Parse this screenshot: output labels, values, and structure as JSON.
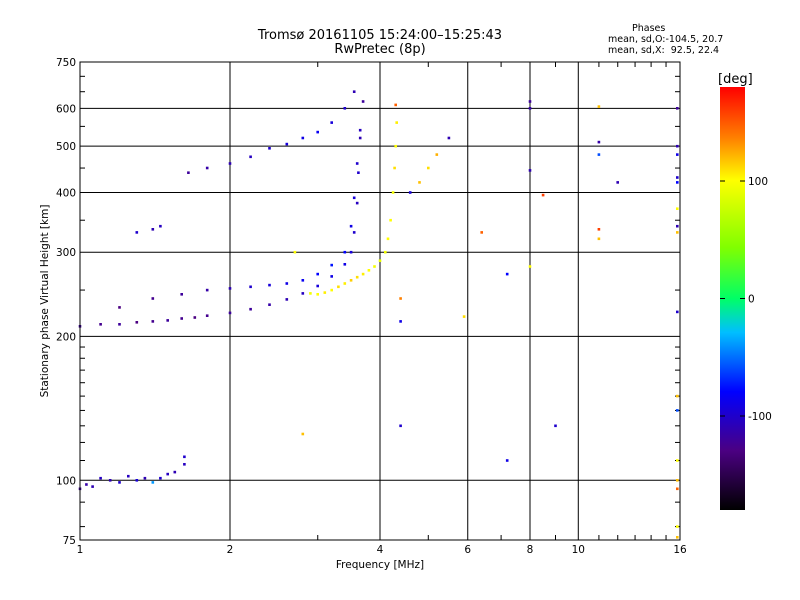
{
  "header": {
    "title": "Tromsø 20161105 15:24:00–15:25:43",
    "subtitle": "RwPretec (8p)"
  },
  "stats": {
    "heading": "Phases",
    "line_o": "mean, sd,O:-104.5, 20.7",
    "line_x": "mean, sd,X:  92.5, 22.4"
  },
  "chart_data": {
    "type": "scatter",
    "xlabel": "Frequency [MHz]",
    "ylabel": "Stationary phase Virtual Height [km]",
    "x_scale": "log",
    "y_scale": "log",
    "xlim": [
      1,
      16
    ],
    "ylim": [
      75,
      750
    ],
    "x_ticks": [
      1,
      2,
      4,
      6,
      8,
      10,
      16
    ],
    "y_ticks": [
      75,
      100,
      200,
      300,
      400,
      500,
      600,
      750
    ],
    "grid": true,
    "colorbar": {
      "label": "[deg]",
      "range": [
        -180,
        180
      ],
      "ticks": [
        -100,
        0,
        100
      ]
    },
    "series": [
      {
        "group": "E",
        "points": [
          [
            1.0,
            96,
            -120
          ],
          [
            1.03,
            98,
            -115
          ],
          [
            1.06,
            97,
            -110
          ],
          [
            1.1,
            101,
            -105
          ],
          [
            1.15,
            100,
            -110
          ],
          [
            1.2,
            99,
            -100
          ],
          [
            1.25,
            102,
            -105
          ],
          [
            1.3,
            100,
            -95
          ],
          [
            1.35,
            101,
            -110
          ],
          [
            1.4,
            99,
            -40
          ],
          [
            1.45,
            101,
            -100
          ],
          [
            1.5,
            103,
            -105
          ],
          [
            1.55,
            104,
            -110
          ],
          [
            1.62,
            108,
            -105
          ],
          [
            1.62,
            112,
            -100
          ]
        ]
      },
      {
        "group": "O-low",
        "points": [
          [
            1.0,
            210,
            -120
          ],
          [
            1.1,
            212,
            -125
          ],
          [
            1.2,
            212,
            -120
          ],
          [
            1.3,
            214,
            -130
          ],
          [
            1.4,
            215,
            -125
          ],
          [
            1.5,
            216,
            -120
          ],
          [
            1.6,
            218,
            -125
          ],
          [
            1.7,
            219,
            -130
          ],
          [
            1.8,
            221,
            -125
          ],
          [
            2.0,
            224,
            -120
          ],
          [
            2.2,
            228,
            -120
          ],
          [
            2.4,
            233,
            -115
          ],
          [
            2.6,
            239,
            -110
          ],
          [
            2.8,
            246,
            -105
          ],
          [
            3.0,
            255,
            -95
          ],
          [
            3.2,
            267,
            -90
          ],
          [
            3.4,
            283,
            -90
          ],
          [
            3.5,
            300,
            -95
          ],
          [
            3.55,
            330,
            -100
          ],
          [
            3.6,
            380,
            -105
          ],
          [
            3.62,
            440,
            -100
          ],
          [
            3.65,
            520,
            -110
          ],
          [
            3.7,
            620,
            -120
          ]
        ]
      },
      {
        "group": "O-high",
        "points": [
          [
            1.2,
            230,
            -130
          ],
          [
            1.4,
            240,
            -125
          ],
          [
            1.6,
            245,
            -120
          ],
          [
            1.8,
            250,
            -115
          ],
          [
            2.0,
            252,
            -110
          ],
          [
            2.2,
            254,
            -100
          ],
          [
            2.4,
            256,
            -95
          ],
          [
            2.6,
            258,
            -90
          ],
          [
            2.8,
            262,
            -85
          ],
          [
            3.0,
            270,
            -80
          ],
          [
            3.2,
            282,
            -75
          ],
          [
            3.4,
            300,
            -80
          ],
          [
            3.5,
            340,
            -90
          ],
          [
            3.55,
            390,
            -95
          ],
          [
            3.6,
            460,
            -100
          ],
          [
            3.65,
            540,
            -105
          ]
        ]
      },
      {
        "group": "X",
        "points": [
          [
            2.9,
            246,
            95
          ],
          [
            3.0,
            245,
            100
          ],
          [
            3.1,
            247,
            105
          ],
          [
            3.2,
            250,
            100
          ],
          [
            3.3,
            254,
            110
          ],
          [
            3.4,
            258,
            105
          ],
          [
            3.5,
            262,
            115
          ],
          [
            3.6,
            266,
            110
          ],
          [
            3.7,
            270,
            105
          ],
          [
            3.8,
            275,
            100
          ],
          [
            3.9,
            280,
            95
          ],
          [
            4.0,
            288,
            90
          ],
          [
            4.1,
            300,
            95
          ],
          [
            4.15,
            320,
            100
          ],
          [
            4.2,
            350,
            100
          ],
          [
            4.25,
            400,
            95
          ],
          [
            4.28,
            450,
            110
          ],
          [
            4.3,
            500,
            100
          ],
          [
            4.32,
            560,
            105
          ],
          [
            4.3,
            610,
            150
          ]
        ]
      },
      {
        "group": "F1",
        "points": [
          [
            1.65,
            440,
            -120
          ],
          [
            1.8,
            450,
            -115
          ],
          [
            2.0,
            460,
            -110
          ],
          [
            2.2,
            475,
            -105
          ],
          [
            2.4,
            495,
            -100
          ],
          [
            2.6,
            505,
            -95
          ],
          [
            2.8,
            520,
            -90
          ],
          [
            3.0,
            535,
            -85
          ],
          [
            3.2,
            560,
            -95
          ],
          [
            3.4,
            600,
            -100
          ],
          [
            3.55,
            650,
            -110
          ]
        ]
      },
      {
        "group": "scatter",
        "points": [
          [
            1.3,
            330,
            -100
          ],
          [
            1.4,
            335,
            -110
          ],
          [
            1.45,
            340,
            -105
          ],
          [
            4.6,
            400,
            -95
          ],
          [
            4.8,
            420,
            120
          ],
          [
            5.0,
            450,
            110
          ],
          [
            5.2,
            480,
            125
          ],
          [
            5.5,
            520,
            -110
          ],
          [
            4.4,
            130,
            -100
          ],
          [
            4.4,
            215,
            -90
          ],
          [
            4.4,
            240,
            140
          ],
          [
            6.4,
            330,
            150
          ],
          [
            7.2,
            270,
            -80
          ],
          [
            7.2,
            110,
            -90
          ],
          [
            8.0,
            620,
            -120
          ],
          [
            8.0,
            600,
            -115
          ],
          [
            8.0,
            445,
            -110
          ],
          [
            8.5,
            395,
            160
          ],
          [
            9.0,
            130,
            -100
          ],
          [
            11.0,
            605,
            120
          ],
          [
            11.0,
            510,
            -115
          ],
          [
            11.0,
            480,
            -60
          ],
          [
            11.0,
            335,
            160
          ],
          [
            11.0,
            320,
            120
          ],
          [
            12.0,
            420,
            -110
          ],
          [
            2.8,
            125,
            120
          ],
          [
            2.7,
            300,
            100
          ],
          [
            5.9,
            220,
            110
          ],
          [
            8.0,
            280,
            100
          ],
          [
            15.8,
            600,
            -120
          ],
          [
            15.8,
            500,
            -110
          ],
          [
            15.8,
            480,
            -90
          ],
          [
            15.8,
            430,
            -100
          ],
          [
            15.8,
            420,
            -80
          ],
          [
            15.8,
            370,
            100
          ],
          [
            15.8,
            340,
            -110
          ],
          [
            15.8,
            330,
            120
          ],
          [
            15.8,
            225,
            -100
          ],
          [
            15.8,
            150,
            120
          ],
          [
            15.8,
            140,
            -60
          ],
          [
            15.8,
            110,
            100
          ],
          [
            15.8,
            100,
            120
          ],
          [
            15.8,
            96,
            150
          ],
          [
            15.8,
            80,
            100
          ],
          [
            15.8,
            76,
            120
          ]
        ]
      }
    ]
  }
}
